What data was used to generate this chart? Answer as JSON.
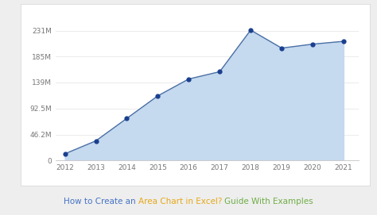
{
  "years": [
    2012,
    2013,
    2014,
    2015,
    2016,
    2017,
    2018,
    2019,
    2020,
    2021
  ],
  "values": [
    12000000,
    35000000,
    75000000,
    115000000,
    145000000,
    158000000,
    232000000,
    200000000,
    207000000,
    212000000
  ],
  "line_color": "#4a6fa5",
  "fill_color": "#c5d9ef",
  "marker_color": "#1a3f8f",
  "marker_size": 12,
  "yticks": [
    0,
    46200000,
    92500000,
    139000000,
    185000000,
    231000000
  ],
  "ytick_labels": [
    "0",
    "46.2M",
    "92.5M",
    "139M",
    "185M",
    "231M"
  ],
  "xlim": [
    2011.7,
    2021.5
  ],
  "ylim": [
    0,
    252000000
  ],
  "outer_bg": "#eeeeee",
  "card_bg": "#ffffff",
  "title_parts": [
    {
      "text": "How to Create an ",
      "color": "#4472c4"
    },
    {
      "text": "Area Chart in Excel?",
      "color": "#e6a817"
    },
    {
      "text": " ",
      "color": "#4472c4"
    },
    {
      "text": "Guide With Examples",
      "color": "#70ad47"
    }
  ],
  "title_fontsize": 7.5,
  "tick_fontsize": 6.5
}
